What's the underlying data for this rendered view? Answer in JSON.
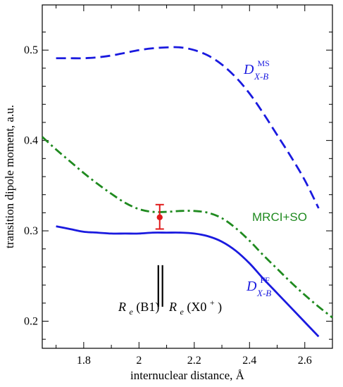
{
  "chart_data": {
    "type": "line",
    "xlabel": "internuclear distance, Å",
    "ylabel": "transition dipole moment, a.u.",
    "xlim": [
      1.65,
      2.7
    ],
    "ylim": [
      0.17,
      0.55
    ],
    "x_ticks": [
      "1.8",
      "2",
      "2.2",
      "2.4",
      "2.6"
    ],
    "y_ticks": [
      "0.2",
      "0.3",
      "0.4",
      "0.5"
    ],
    "grid": false,
    "series": [
      {
        "name": "D^MS_X-B",
        "color": "#1a1adf",
        "style": "dashed",
        "x": [
          1.7,
          1.75,
          1.8,
          1.85,
          1.9,
          1.95,
          2.0,
          2.05,
          2.1,
          2.15,
          2.2,
          2.25,
          2.3,
          2.35,
          2.4,
          2.45,
          2.5,
          2.55,
          2.6,
          2.65
        ],
        "y": [
          0.491,
          0.491,
          0.491,
          0.492,
          0.494,
          0.497,
          0.5,
          0.502,
          0.503,
          0.503,
          0.5,
          0.494,
          0.484,
          0.47,
          0.452,
          0.43,
          0.406,
          0.382,
          0.356,
          0.325
        ]
      },
      {
        "name": "MRCI+SO",
        "color": "#1f8a1f",
        "style": "dash-dot",
        "x": [
          1.65,
          1.7,
          1.75,
          1.8,
          1.85,
          1.9,
          1.95,
          2.0,
          2.05,
          2.1,
          2.15,
          2.2,
          2.25,
          2.3,
          2.35,
          2.4,
          2.45,
          2.5,
          2.55,
          2.6,
          2.65,
          2.7
        ],
        "y": [
          0.404,
          0.39,
          0.377,
          0.364,
          0.352,
          0.341,
          0.331,
          0.324,
          0.321,
          0.321,
          0.322,
          0.322,
          0.32,
          0.314,
          0.303,
          0.289,
          0.273,
          0.258,
          0.243,
          0.229,
          0.216,
          0.204
        ]
      },
      {
        "name": "D^FF_X-B",
        "color": "#1a1adf",
        "style": "solid",
        "x": [
          1.7,
          1.75,
          1.8,
          1.85,
          1.9,
          1.95,
          2.0,
          2.05,
          2.1,
          2.15,
          2.2,
          2.25,
          2.3,
          2.35,
          2.4,
          2.45,
          2.5,
          2.55,
          2.6,
          2.65
        ],
        "y": [
          0.305,
          0.302,
          0.299,
          0.298,
          0.297,
          0.297,
          0.297,
          0.298,
          0.298,
          0.298,
          0.297,
          0.294,
          0.288,
          0.278,
          0.264,
          0.247,
          0.231,
          0.215,
          0.199,
          0.183
        ]
      }
    ],
    "experiment": {
      "x": 2.075,
      "y": 0.315,
      "yerr_low": 0.302,
      "yerr_high": 0.329,
      "color": "#e01b1b"
    },
    "markers": [
      {
        "x": 2.07,
        "y_from": 0.216,
        "y_to": 0.262
      },
      {
        "x": 2.085,
        "y_from": 0.216,
        "y_to": 0.262
      }
    ],
    "labels": {
      "ms_main": "D",
      "ms_sup": "MS",
      "ms_sub": "X-B",
      "mrci": "MRCI+SO",
      "ff_main": "D",
      "ff_sup": "FF",
      "ff_sub": "X-B",
      "re_b1_main": "R",
      "re_b1_sub": "e",
      "re_b1_arg": "(B1)",
      "re_x0_main": "R",
      "re_x0_sub": "e",
      "re_x0_arg": "(X0",
      "re_x0_sup": "+",
      "re_x0_close": ")"
    }
  }
}
